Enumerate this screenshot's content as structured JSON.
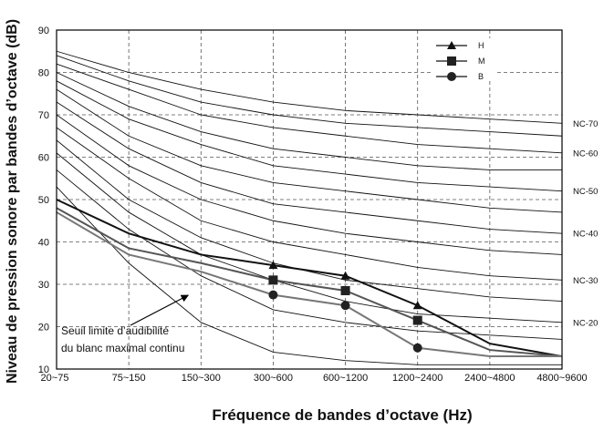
{
  "chart_data": {
    "type": "line",
    "xlabel": "Fréquence de bandes d’octave (Hz)",
    "ylabel": "Niveau de pression sonore par bandes d’octave (dB)",
    "ylim": [
      10,
      90
    ],
    "grid": true,
    "legend_position": "top-right",
    "categories": [
      "20~75",
      "75~150",
      "150~300",
      "300~600",
      "600~1200",
      "1200~2400",
      "2400~4800",
      "4800~9600"
    ],
    "y_ticks": [
      10,
      20,
      30,
      40,
      50,
      60,
      70,
      80,
      90
    ],
    "series": [
      {
        "name": "H",
        "marker": "triangle",
        "color": "#111111",
        "values": [
          50,
          42,
          37,
          34.5,
          32,
          25,
          16,
          13
        ]
      },
      {
        "name": "M",
        "marker": "square",
        "color": "#555555",
        "values": [
          48,
          38.5,
          35,
          31,
          28.5,
          21.5,
          14.5,
          13
        ]
      },
      {
        "name": "B",
        "marker": "circle",
        "color": "#777777",
        "values": [
          47,
          37,
          33,
          27.5,
          25,
          15,
          13,
          13
        ]
      }
    ],
    "nc_curves": [
      {
        "label": "",
        "values": [
          53,
          35,
          21,
          14,
          12,
          11,
          11,
          11
        ]
      },
      {
        "label": "",
        "values": [
          57,
          43,
          32,
          24,
          21,
          19,
          18,
          17
        ]
      },
      {
        "label": "NC-20",
        "values": [
          61,
          47,
          37,
          31,
          26,
          23,
          22,
          21
        ]
      },
      {
        "label": "",
        "values": [
          64,
          50,
          41,
          35,
          31,
          29,
          27,
          26
        ]
      },
      {
        "label": "NC-30",
        "values": [
          67,
          55,
          45,
          40,
          37,
          34,
          32,
          31
        ]
      },
      {
        "label": "",
        "values": [
          70,
          58,
          50,
          45,
          42,
          40,
          38,
          37
        ]
      },
      {
        "label": "NC-40",
        "values": [
          73,
          62,
          54,
          49,
          47,
          45,
          43,
          42
        ]
      },
      {
        "label": "",
        "values": [
          76,
          65,
          58,
          54,
          52,
          50,
          48,
          47
        ]
      },
      {
        "label": "NC-50",
        "values": [
          78,
          69,
          63,
          58,
          56,
          54,
          53,
          52
        ]
      },
      {
        "label": "",
        "values": [
          80,
          72,
          66,
          62,
          60,
          58,
          57,
          57
        ]
      },
      {
        "label": "NC-60",
        "values": [
          82,
          76,
          70,
          67,
          65,
          63,
          62,
          61
        ]
      },
      {
        "label": "",
        "values": [
          84,
          78,
          73,
          70,
          68,
          67,
          66,
          65
        ]
      },
      {
        "label": "NC-70",
        "values": [
          85,
          80,
          76,
          73,
          71,
          70,
          69,
          68
        ]
      }
    ],
    "threshold_annotation": {
      "lines": [
        "Seuil limite d’audibilité",
        "du blanc maximal continu"
      ],
      "arrow_to": {
        "category": "150~300",
        "value": 30
      }
    }
  }
}
